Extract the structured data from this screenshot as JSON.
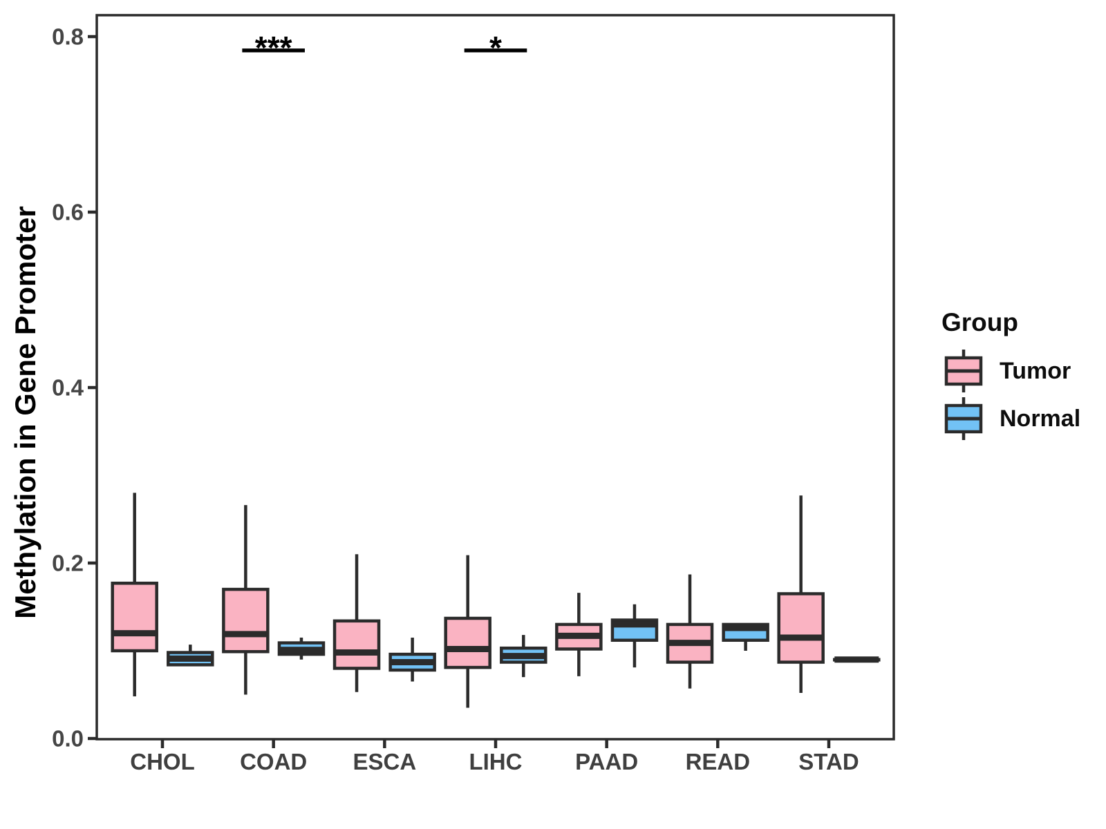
{
  "figure": {
    "background": "#FFFFFF"
  },
  "colors": {
    "tumor_fill": "#FAB3C2",
    "normal_fill": "#72C2F5",
    "box_border": "#2B2B2B",
    "panel_border": "#2B2B2B",
    "tick_text": "#454545",
    "axis_label_text": "#3F3F3F",
    "annotation": "#000000"
  },
  "legend": {
    "title": "Group",
    "items": [
      {
        "label": "Tumor",
        "color": "#FAB3C2"
      },
      {
        "label": "Normal",
        "color": "#72C2F5"
      }
    ]
  },
  "chart_data": {
    "type": "boxplot",
    "title": "",
    "xlabel": "",
    "ylabel": "Methylation in Gene Promoter",
    "categories": [
      "CHOL",
      "COAD",
      "ESCA",
      "LIHC",
      "PAAD",
      "READ",
      "STAD"
    ],
    "y_ticks": [
      {
        "value": 0.0,
        "label": "0.0"
      },
      {
        "value": 0.2,
        "label": "0.2"
      },
      {
        "value": 0.4,
        "label": "0.4"
      },
      {
        "value": 0.6,
        "label": "0.6"
      },
      {
        "value": 0.8,
        "label": "0.8"
      }
    ],
    "ylim": [
      0,
      0.825
    ],
    "grid": false,
    "legend_position": "right",
    "series": [
      {
        "name": "Tumor",
        "color": "#FAB3C2",
        "boxes": [
          {
            "category": "CHOL",
            "min": 0.048,
            "q1": 0.1,
            "median": 0.12,
            "q3": 0.177,
            "max": 0.28
          },
          {
            "category": "COAD",
            "min": 0.05,
            "q1": 0.099,
            "median": 0.119,
            "q3": 0.17,
            "max": 0.266
          },
          {
            "category": "ESCA",
            "min": 0.053,
            "q1": 0.08,
            "median": 0.098,
            "q3": 0.134,
            "max": 0.21
          },
          {
            "category": "LIHC",
            "min": 0.035,
            "q1": 0.081,
            "median": 0.102,
            "q3": 0.137,
            "max": 0.209
          },
          {
            "category": "PAAD",
            "min": 0.071,
            "q1": 0.102,
            "median": 0.117,
            "q3": 0.13,
            "max": 0.166
          },
          {
            "category": "READ",
            "min": 0.057,
            "q1": 0.087,
            "median": 0.109,
            "q3": 0.13,
            "max": 0.187
          },
          {
            "category": "STAD",
            "min": 0.052,
            "q1": 0.087,
            "median": 0.115,
            "q3": 0.165,
            "max": 0.277
          }
        ]
      },
      {
        "name": "Normal",
        "color": "#72C2F5",
        "boxes": [
          {
            "category": "CHOL",
            "min": 0.084,
            "q1": 0.084,
            "median": 0.091,
            "q3": 0.098,
            "max": 0.107
          },
          {
            "category": "COAD",
            "min": 0.09,
            "q1": 0.096,
            "median": 0.101,
            "q3": 0.109,
            "max": 0.115
          },
          {
            "category": "ESCA",
            "min": 0.065,
            "q1": 0.078,
            "median": 0.087,
            "q3": 0.096,
            "max": 0.115
          },
          {
            "category": "LIHC",
            "min": 0.07,
            "q1": 0.087,
            "median": 0.094,
            "q3": 0.103,
            "max": 0.118
          },
          {
            "category": "PAAD",
            "min": 0.081,
            "q1": 0.112,
            "median": 0.13,
            "q3": 0.135,
            "max": 0.153
          },
          {
            "category": "READ",
            "min": 0.1,
            "q1": 0.112,
            "median": 0.126,
            "q3": 0.13,
            "max": 0.13
          },
          {
            "category": "STAD",
            "min": 0.09,
            "q1": 0.09,
            "median": 0.09,
            "q3": 0.09,
            "max": 0.09
          }
        ]
      }
    ],
    "annotations": [
      {
        "category": "COAD",
        "label": "***"
      },
      {
        "category": "LIHC",
        "label": "*"
      }
    ]
  }
}
